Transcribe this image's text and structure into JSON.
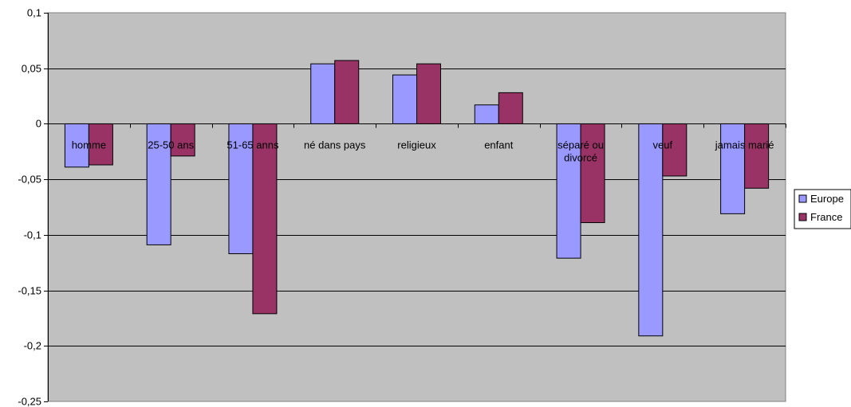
{
  "chart_data": {
    "type": "bar",
    "title": "",
    "xlabel": "",
    "ylabel": "",
    "ylim": [
      -0.25,
      0.1
    ],
    "ytick_step": 0.05,
    "ytick_labels": [
      "0,1",
      "0,05",
      "0",
      "-0,05",
      "-0,1",
      "-0,15",
      "-0,2",
      "-0,25"
    ],
    "grid": true,
    "legend_position": "right",
    "categories": [
      "homme",
      "25-50 ans",
      "51-65 anns",
      "né dans pays",
      "religieux",
      "enfant",
      "séparé ou divorcé",
      "veuf",
      "jamais marié"
    ],
    "category_lines": [
      [
        "homme"
      ],
      [
        "25-50 ans"
      ],
      [
        "51-65 anns"
      ],
      [
        "né dans pays"
      ],
      [
        "religieux"
      ],
      [
        "enfant"
      ],
      [
        "séparé ou",
        "divorcé"
      ],
      [
        "veuf"
      ],
      [
        "jamais marié"
      ]
    ],
    "series": [
      {
        "name": "Europe",
        "color": "#9999ff",
        "values": [
          -0.039,
          -0.109,
          -0.117,
          0.054,
          0.044,
          0.017,
          -0.121,
          -0.191,
          -0.081
        ]
      },
      {
        "name": "France",
        "color": "#993366",
        "values": [
          -0.037,
          -0.029,
          -0.171,
          0.057,
          0.054,
          0.028,
          -0.089,
          -0.047,
          -0.058
        ]
      }
    ],
    "plot_background": "#c0c0c0"
  }
}
